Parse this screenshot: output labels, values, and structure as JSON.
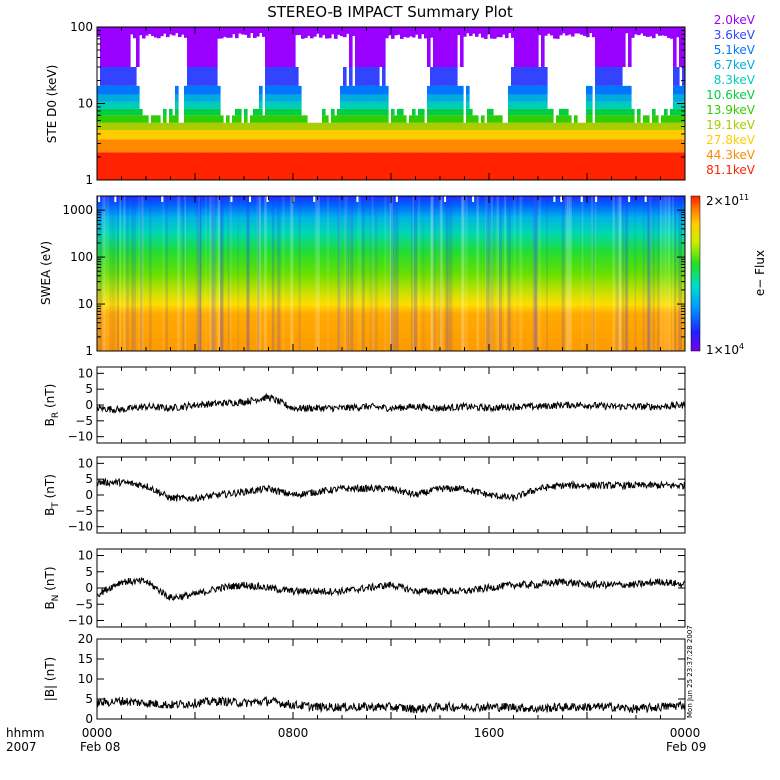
{
  "title": "STEREO-B IMPACT Summary Plot",
  "footer": {
    "row1": [
      "hhmm",
      "0000",
      "0800",
      "1600",
      "0000"
    ],
    "row2": [
      "2007",
      "Feb 08",
      "Feb 09"
    ]
  },
  "stamp": "Mon Jun 25 23:37:28 2007",
  "colorbar": {
    "label": "e− Flux",
    "top_tick": "2×10",
    "top_exp": "11",
    "bottom_tick": "1×10",
    "bottom_exp": "4"
  },
  "legend": [
    {
      "text": "2.0keV",
      "color": "#9900ff"
    },
    {
      "text": "3.6keV",
      "color": "#3344ff"
    },
    {
      "text": "5.1keV",
      "color": "#0077ff"
    },
    {
      "text": "6.7keV",
      "color": "#00aadd"
    },
    {
      "text": "8.3keV",
      "color": "#00ccbb"
    },
    {
      "text": "10.6keV",
      "color": "#00cc44"
    },
    {
      "text": "13.9keV",
      "color": "#33cc00"
    },
    {
      "text": "19.1keV",
      "color": "#aacc00"
    },
    {
      "text": "27.8keV",
      "color": "#ffcc00"
    },
    {
      "text": "44.3keV",
      "color": "#ff8800"
    },
    {
      "text": "81.1keV",
      "color": "#ff2200"
    }
  ],
  "chart_data": [
    {
      "type": "heatmap",
      "ylabel": "STE D0 (keV)",
      "yscale": "log",
      "ylim": [
        1,
        100
      ],
      "y_ticks": [
        "1",
        "10",
        "100"
      ],
      "xlim": [
        "Feb 08 0000",
        "Feb 09 0000"
      ],
      "series_colors_low_to_high_energy": [
        "#ff2200",
        "#ff8800",
        "#ffcc00",
        "#aacc00",
        "#33cc00",
        "#00cc44",
        "#00ccbb",
        "#00aadd",
        "#0077ff",
        "#3344ff",
        "#9900ff"
      ]
    },
    {
      "type": "heatmap",
      "ylabel": "SWEA (eV)",
      "yscale": "log",
      "ylim": [
        1,
        2000
      ],
      "y_ticks": [
        "1",
        "10",
        "100",
        "1000"
      ],
      "colorbar_range": [
        "1×10^4",
        "2×10^11"
      ],
      "colorbar_label": "e− Flux"
    },
    {
      "type": "line",
      "ylabel_base": "B",
      "ylabel_sub": "R",
      "ylabel_unit": " (nT)",
      "ylim": [
        -12,
        12
      ],
      "y_ticks": [
        "10",
        "5",
        "0",
        "−5",
        "−10"
      ],
      "x_hours": [
        0,
        1,
        2,
        3,
        4,
        5,
        6,
        7,
        8,
        9,
        10,
        11,
        12,
        13,
        14,
        15,
        16,
        17,
        18,
        19,
        20,
        21,
        22,
        23,
        24
      ],
      "values": [
        -1,
        -1.5,
        -0.5,
        -1,
        0,
        0.5,
        1,
        2.5,
        -1,
        -1,
        -1,
        -0.5,
        -1,
        -0.5,
        -1,
        -0.5,
        -1,
        -0.5,
        -0.5,
        0,
        0,
        -0.5,
        -0.5,
        -0.5,
        0
      ]
    },
    {
      "type": "line",
      "ylabel_base": "B",
      "ylabel_sub": "T",
      "ylabel_unit": " (nT)",
      "ylim": [
        -12,
        12
      ],
      "y_ticks": [
        "10",
        "5",
        "0",
        "−5",
        "−10"
      ],
      "x_hours": [
        0,
        1,
        2,
        3,
        4,
        5,
        6,
        7,
        8,
        9,
        10,
        11,
        12,
        13,
        14,
        15,
        16,
        17,
        18,
        19,
        20,
        21,
        22,
        23,
        24
      ],
      "values": [
        4,
        4,
        3,
        -1,
        -1,
        0,
        1,
        2,
        0,
        1,
        2,
        2,
        2,
        0,
        2,
        2,
        0,
        -1,
        2,
        3,
        3,
        3,
        3,
        3,
        3
      ]
    },
    {
      "type": "line",
      "ylabel_base": "B",
      "ylabel_sub": "N",
      "ylabel_unit": " (nT)",
      "ylim": [
        -12,
        12
      ],
      "y_ticks": [
        "10",
        "5",
        "0",
        "−5",
        "−10"
      ],
      "x_hours": [
        0,
        1,
        2,
        3,
        4,
        5,
        6,
        7,
        8,
        9,
        10,
        11,
        12,
        13,
        14,
        15,
        16,
        17,
        18,
        19,
        20,
        21,
        22,
        23,
        24
      ],
      "values": [
        -2,
        2,
        2,
        -3,
        -2,
        0,
        1,
        0,
        -1,
        -1,
        -1,
        0,
        1,
        -1,
        -1,
        -1,
        0,
        1,
        1,
        2,
        1,
        1,
        1,
        2,
        1
      ]
    },
    {
      "type": "line",
      "ylabel": "|B| (nT)",
      "ylim": [
        0,
        20
      ],
      "y_ticks": [
        "20",
        "15",
        "10",
        "5",
        "0"
      ],
      "x_hours": [
        0,
        1,
        2,
        3,
        4,
        5,
        6,
        7,
        8,
        9,
        10,
        11,
        12,
        13,
        14,
        15,
        16,
        17,
        18,
        19,
        20,
        21,
        22,
        23,
        24
      ],
      "values": [
        4,
        4.5,
        4,
        3.5,
        4,
        4.5,
        4,
        4.5,
        3.5,
        3,
        3,
        3,
        3,
        2.5,
        3,
        3,
        3,
        3,
        2.5,
        3,
        3,
        3,
        2.5,
        3,
        3.5
      ]
    }
  ]
}
